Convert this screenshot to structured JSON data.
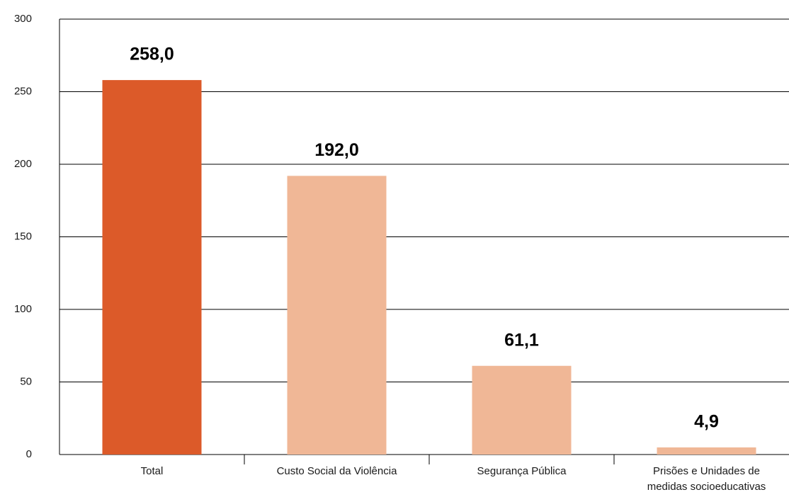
{
  "chart_data": {
    "type": "bar",
    "categories": [
      "Total",
      "Custo Social da Violência",
      "Segurança Pública",
      "Prisões e Unidades de medidas socioeducativas"
    ],
    "values": [
      258.0,
      192.0,
      61.1,
      4.9
    ],
    "value_labels": [
      "258,0",
      "192,0",
      "61,1",
      "4,9"
    ],
    "colors": [
      "#dc5a29",
      "#f0b796",
      "#f0b796",
      "#f0b796"
    ],
    "ylim": [
      0,
      300
    ],
    "yticks": [
      0,
      50,
      100,
      150,
      200,
      250,
      300
    ],
    "grid": true
  }
}
